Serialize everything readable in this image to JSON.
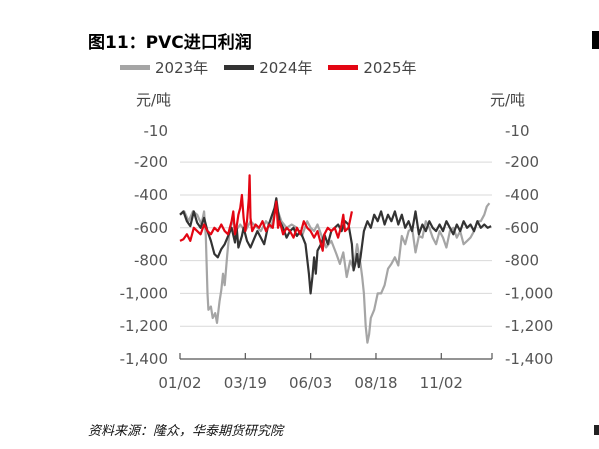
{
  "title": "图11：PVC进口利润",
  "source": "资料来源：隆众，华泰期货研究院",
  "chart_data": {
    "type": "line",
    "unit_left": "元/吨",
    "unit_right": "元/吨",
    "yticks": [
      -10,
      -200,
      -400,
      -600,
      -800,
      -1000,
      -1200,
      -1400
    ],
    "ytick_labels": [
      "-10",
      "-200",
      "-400",
      "-600",
      "-800",
      "-1,000",
      "-1,200",
      "-1,400"
    ],
    "ylim": [
      -1400,
      -10
    ],
    "xticks": [
      "01/02",
      "03/19",
      "06/03",
      "08/18",
      "11/02"
    ],
    "x_range_days": [
      0,
      363
    ],
    "xtick_days": [
      0,
      76,
      152,
      228,
      304
    ],
    "grid": true,
    "legend_position": "top-left",
    "series": [
      {
        "name": "2023年",
        "color": "#A5A5A5",
        "points": [
          [
            0,
            -520
          ],
          [
            5,
            -500
          ],
          [
            10,
            -560
          ],
          [
            15,
            -500
          ],
          [
            20,
            -520
          ],
          [
            25,
            -580
          ],
          [
            28,
            -500
          ],
          [
            30,
            -650
          ],
          [
            32,
            -1000
          ],
          [
            33,
            -1100
          ],
          [
            36,
            -1080
          ],
          [
            38,
            -1150
          ],
          [
            41,
            -1120
          ],
          [
            43,
            -1180
          ],
          [
            46,
            -1050
          ],
          [
            48,
            -980
          ],
          [
            50,
            -880
          ],
          [
            52,
            -950
          ],
          [
            55,
            -760
          ],
          [
            58,
            -600
          ],
          [
            62,
            -560
          ],
          [
            66,
            -610
          ],
          [
            70,
            -580
          ],
          [
            76,
            -620
          ],
          [
            82,
            -560
          ],
          [
            88,
            -590
          ],
          [
            94,
            -620
          ],
          [
            100,
            -560
          ],
          [
            106,
            -600
          ],
          [
            112,
            -470
          ],
          [
            118,
            -560
          ],
          [
            124,
            -600
          ],
          [
            130,
            -580
          ],
          [
            136,
            -600
          ],
          [
            142,
            -650
          ],
          [
            148,
            -560
          ],
          [
            152,
            -600
          ],
          [
            156,
            -620
          ],
          [
            160,
            -580
          ],
          [
            164,
            -640
          ],
          [
            170,
            -720
          ],
          [
            176,
            -680
          ],
          [
            182,
            -760
          ],
          [
            186,
            -820
          ],
          [
            190,
            -750
          ],
          [
            194,
            -900
          ],
          [
            198,
            -800
          ],
          [
            202,
            -850
          ],
          [
            206,
            -700
          ],
          [
            210,
            -820
          ],
          [
            212,
            -900
          ],
          [
            214,
            -1000
          ],
          [
            216,
            -1200
          ],
          [
            218,
            -1300
          ],
          [
            220,
            -1250
          ],
          [
            222,
            -1150
          ],
          [
            226,
            -1100
          ],
          [
            230,
            -1000
          ],
          [
            234,
            -1000
          ],
          [
            238,
            -950
          ],
          [
            242,
            -850
          ],
          [
            246,
            -820
          ],
          [
            250,
            -780
          ],
          [
            254,
            -830
          ],
          [
            258,
            -650
          ],
          [
            262,
            -700
          ],
          [
            266,
            -620
          ],
          [
            270,
            -600
          ],
          [
            274,
            -750
          ],
          [
            278,
            -650
          ],
          [
            282,
            -660
          ],
          [
            286,
            -560
          ],
          [
            290,
            -600
          ],
          [
            294,
            -660
          ],
          [
            298,
            -700
          ],
          [
            302,
            -620
          ],
          [
            306,
            -660
          ],
          [
            310,
            -720
          ],
          [
            314,
            -620
          ],
          [
            318,
            -600
          ],
          [
            322,
            -660
          ],
          [
            326,
            -620
          ],
          [
            330,
            -700
          ],
          [
            334,
            -680
          ],
          [
            338,
            -660
          ],
          [
            342,
            -620
          ],
          [
            346,
            -560
          ],
          [
            350,
            -560
          ],
          [
            354,
            -520
          ],
          [
            357,
            -470
          ],
          [
            360,
            -450
          ]
        ]
      },
      {
        "name": "2024年",
        "color": "#333333",
        "points": [
          [
            0,
            -520
          ],
          [
            4,
            -500
          ],
          [
            8,
            -560
          ],
          [
            12,
            -590
          ],
          [
            16,
            -500
          ],
          [
            20,
            -570
          ],
          [
            24,
            -600
          ],
          [
            28,
            -540
          ],
          [
            32,
            -620
          ],
          [
            36,
            -680
          ],
          [
            40,
            -760
          ],
          [
            44,
            -780
          ],
          [
            48,
            -730
          ],
          [
            52,
            -700
          ],
          [
            56,
            -650
          ],
          [
            60,
            -600
          ],
          [
            64,
            -690
          ],
          [
            66,
            -600
          ],
          [
            68,
            -720
          ],
          [
            72,
            -650
          ],
          [
            74,
            -600
          ],
          [
            76,
            -640
          ],
          [
            78,
            -680
          ],
          [
            82,
            -720
          ],
          [
            86,
            -670
          ],
          [
            90,
            -620
          ],
          [
            94,
            -660
          ],
          [
            98,
            -700
          ],
          [
            102,
            -600
          ],
          [
            106,
            -540
          ],
          [
            110,
            -480
          ],
          [
            112,
            -420
          ],
          [
            114,
            -500
          ],
          [
            116,
            -560
          ],
          [
            120,
            -600
          ],
          [
            124,
            -660
          ],
          [
            128,
            -620
          ],
          [
            132,
            -600
          ],
          [
            136,
            -650
          ],
          [
            140,
            -620
          ],
          [
            146,
            -700
          ],
          [
            150,
            -880
          ],
          [
            152,
            -1000
          ],
          [
            154,
            -900
          ],
          [
            156,
            -780
          ],
          [
            158,
            -880
          ],
          [
            160,
            -740
          ],
          [
            164,
            -700
          ],
          [
            168,
            -640
          ],
          [
            172,
            -700
          ],
          [
            176,
            -620
          ],
          [
            180,
            -600
          ],
          [
            184,
            -580
          ],
          [
            188,
            -620
          ],
          [
            192,
            -560
          ],
          [
            196,
            -580
          ],
          [
            200,
            -700
          ],
          [
            202,
            -860
          ],
          [
            204,
            -820
          ],
          [
            206,
            -760
          ],
          [
            208,
            -840
          ],
          [
            210,
            -780
          ],
          [
            214,
            -620
          ],
          [
            218,
            -560
          ],
          [
            222,
            -600
          ],
          [
            226,
            -520
          ],
          [
            230,
            -560
          ],
          [
            234,
            -500
          ],
          [
            238,
            -580
          ],
          [
            242,
            -520
          ],
          [
            246,
            -560
          ],
          [
            250,
            -500
          ],
          [
            254,
            -580
          ],
          [
            258,
            -520
          ],
          [
            262,
            -600
          ],
          [
            266,
            -560
          ],
          [
            270,
            -620
          ],
          [
            274,
            -500
          ],
          [
            278,
            -640
          ],
          [
            282,
            -580
          ],
          [
            286,
            -620
          ],
          [
            290,
            -560
          ],
          [
            294,
            -600
          ],
          [
            298,
            -620
          ],
          [
            302,
            -580
          ],
          [
            306,
            -620
          ],
          [
            310,
            -560
          ],
          [
            314,
            -600
          ],
          [
            318,
            -640
          ],
          [
            322,
            -580
          ],
          [
            326,
            -620
          ],
          [
            330,
            -560
          ],
          [
            334,
            -600
          ],
          [
            338,
            -580
          ],
          [
            342,
            -620
          ],
          [
            346,
            -560
          ],
          [
            350,
            -600
          ],
          [
            354,
            -580
          ],
          [
            358,
            -600
          ],
          [
            362,
            -590
          ]
        ]
      },
      {
        "name": "2025年",
        "color": "#E30613",
        "points": [
          [
            0,
            -680
          ],
          [
            4,
            -670
          ],
          [
            8,
            -640
          ],
          [
            12,
            -680
          ],
          [
            16,
            -600
          ],
          [
            20,
            -620
          ],
          [
            24,
            -640
          ],
          [
            28,
            -580
          ],
          [
            32,
            -620
          ],
          [
            36,
            -640
          ],
          [
            40,
            -600
          ],
          [
            44,
            -620
          ],
          [
            48,
            -580
          ],
          [
            52,
            -620
          ],
          [
            56,
            -640
          ],
          [
            60,
            -560
          ],
          [
            62,
            -500
          ],
          [
            64,
            -640
          ],
          [
            66,
            -590
          ],
          [
            68,
            -520
          ],
          [
            70,
            -480
          ],
          [
            72,
            -400
          ],
          [
            74,
            -540
          ],
          [
            76,
            -620
          ],
          [
            78,
            -560
          ],
          [
            80,
            -420
          ],
          [
            81,
            -280
          ],
          [
            82,
            -540
          ],
          [
            84,
            -620
          ],
          [
            88,
            -580
          ],
          [
            92,
            -600
          ],
          [
            96,
            -560
          ],
          [
            100,
            -620
          ],
          [
            104,
            -580
          ],
          [
            108,
            -600
          ],
          [
            112,
            -440
          ],
          [
            114,
            -600
          ],
          [
            116,
            -560
          ],
          [
            120,
            -640
          ],
          [
            124,
            -600
          ],
          [
            128,
            -620
          ],
          [
            132,
            -660
          ],
          [
            136,
            -600
          ],
          [
            140,
            -640
          ],
          [
            144,
            -560
          ],
          [
            148,
            -600
          ],
          [
            152,
            -620
          ],
          [
            156,
            -660
          ],
          [
            160,
            -620
          ],
          [
            164,
            -700
          ],
          [
            166,
            -740
          ],
          [
            168,
            -640
          ],
          [
            172,
            -600
          ],
          [
            176,
            -620
          ],
          [
            180,
            -600
          ],
          [
            184,
            -660
          ],
          [
            188,
            -580
          ],
          [
            190,
            -520
          ],
          [
            192,
            -620
          ],
          [
            196,
            -600
          ],
          [
            200,
            -500
          ]
        ]
      }
    ]
  }
}
